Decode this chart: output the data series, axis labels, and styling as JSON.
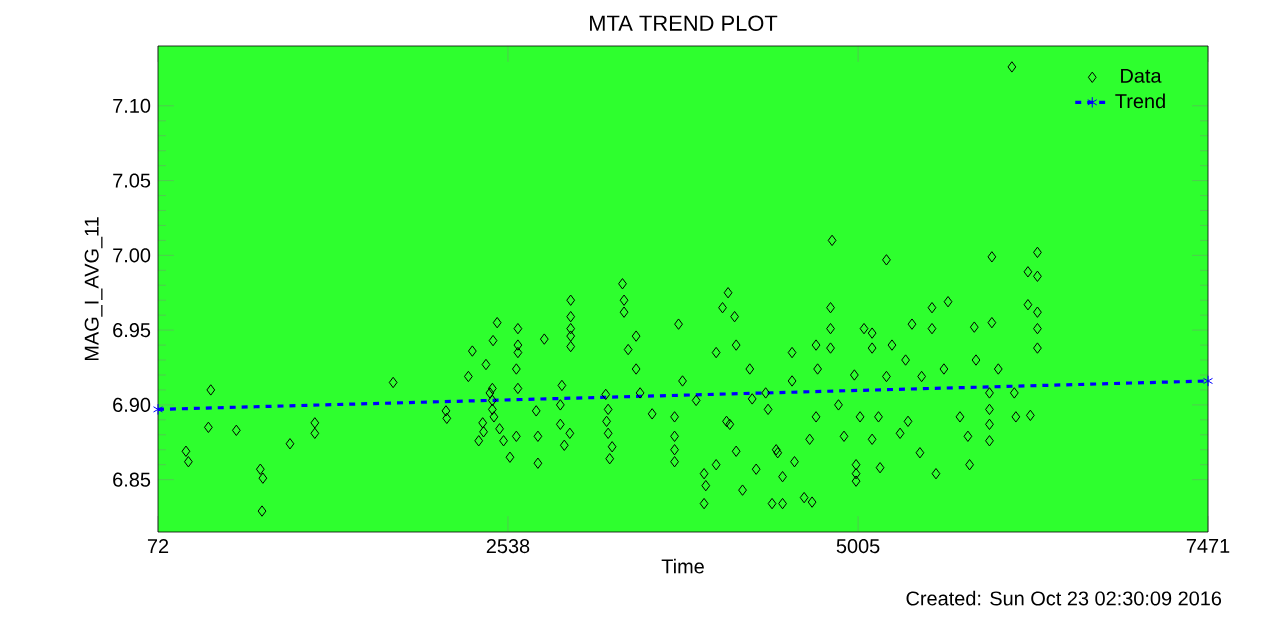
{
  "chart_data": {
    "type": "scatter",
    "title": "MTA TREND PLOT",
    "xlabel": "Time",
    "ylabel": "MAG_I_AVG_11",
    "annotations": [
      "Created: Sun Oct 23 02:30:09 2016"
    ],
    "xlim": [
      72,
      7471
    ],
    "xticks": [
      72,
      2538,
      5005,
      7471
    ],
    "ylim": [
      6.815,
      7.14
    ],
    "yticks": [
      6.85,
      {
        "value": 6.9,
        "label": "6.90"
      },
      6.95,
      {
        "value": 7.0,
        "label": "7.00"
      },
      7.05,
      {
        "value": 7.1,
        "label": "7.10"
      }
    ],
    "legend": "top right",
    "series": [
      {
        "name": "Data",
        "color": "#000000",
        "marker": "diamond",
        "x": [
          269,
          286,
          444,
          427,
          624,
          793,
          811,
          805,
          1002,
          1177,
          1177,
          1729,
          2101,
          2107,
          2287,
          2259,
          2332,
          2360,
          2366,
          2383,
          2411,
          2428,
          2428,
          2428,
          2433,
          2462,
          2439,
          2479,
          2507,
          2552,
          2608,
          2608,
          2608,
          2597,
          2608,
          2597,
          2749,
          2749,
          2737,
          2794,
          2918,
          2935,
          2974,
          2980,
          2980,
          2980,
          2980,
          2980,
          2907,
          2907,
          3227,
          3244,
          3233,
          3244,
          3255,
          3272,
          3345,
          3356,
          3356,
          3385,
          3441,
          3441,
          3469,
          3554,
          3712,
          3712,
          3712,
          3712,
          3740,
          3768,
          3864,
          3920,
          3932,
          3920,
          4005,
          4005,
          4050,
          4089,
          4078,
          4101,
          4135,
          4146,
          4146,
          4191,
          4242,
          4259,
          4354,
          4371,
          4287,
          4399,
          4428,
          4439,
          4473,
          4473,
          4540,
          4540,
          4557,
          4625,
          4681,
          4664,
          4709,
          4720,
          4709,
          4811,
          4811,
          4811,
          4822,
          4867,
          4906,
          4979,
          4991,
          4991,
          4991,
          5019,
          5047,
          5104,
          5104,
          5104,
          5149,
          5160,
          5205,
          5205,
          5244,
          5301,
          5340,
          5385,
          5357,
          5441,
          5453,
          5526,
          5526,
          5554,
          5610,
          5639,
          5723,
          5779,
          5791,
          5824,
          5836,
          5931,
          5931,
          5931,
          5931,
          5948,
          5948,
          5993,
          6117,
          6106,
          6089,
          6202,
          6202,
          6219,
          6269,
          6269,
          6269,
          6269,
          6269
        ],
        "values": [
          6.869,
          6.862,
          6.91,
          6.885,
          6.883,
          6.857,
          6.851,
          6.829,
          6.874,
          6.888,
          6.881,
          6.915,
          6.896,
          6.891,
          6.936,
          6.919,
          6.876,
          6.888,
          6.882,
          6.927,
          6.908,
          6.911,
          6.903,
          6.897,
          6.943,
          6.955,
          6.892,
          6.884,
          6.876,
          6.865,
          6.951,
          6.94,
          6.935,
          6.924,
          6.911,
          6.879,
          6.861,
          6.879,
          6.896,
          6.944,
          6.913,
          6.873,
          6.881,
          6.97,
          6.959,
          6.951,
          6.939,
          6.946,
          6.9,
          6.887,
          6.907,
          6.897,
          6.889,
          6.881,
          6.864,
          6.872,
          6.981,
          6.97,
          6.962,
          6.937,
          6.946,
          6.924,
          6.908,
          6.894,
          6.892,
          6.879,
          6.87,
          6.862,
          6.954,
          6.916,
          6.903,
          6.834,
          6.846,
          6.854,
          6.86,
          6.935,
          6.965,
          6.975,
          6.889,
          6.887,
          6.959,
          6.94,
          6.869,
          6.843,
          6.924,
          6.904,
          6.908,
          6.897,
          6.857,
          6.834,
          6.87,
          6.868,
          6.852,
          6.834,
          6.916,
          6.935,
          6.862,
          6.838,
          6.835,
          6.877,
          6.892,
          6.924,
          6.94,
          6.965,
          6.951,
          6.938,
          7.01,
          6.9,
          6.879,
          6.92,
          6.849,
          6.86,
          6.854,
          6.892,
          6.951,
          6.948,
          6.938,
          6.877,
          6.892,
          6.858,
          6.997,
          6.919,
          6.94,
          6.881,
          6.93,
          6.954,
          6.889,
          6.868,
          6.919,
          6.965,
          6.951,
          6.854,
          6.924,
          6.969,
          6.892,
          6.879,
          6.86,
          6.952,
          6.93,
          6.908,
          6.897,
          6.887,
          6.876,
          6.999,
          6.955,
          6.924,
          6.892,
          6.908,
          7.126,
          6.989,
          6.967,
          6.893,
          7.002,
          6.986,
          6.951,
          6.938,
          6.962
        ]
      },
      {
        "name": "Trend",
        "type": "line",
        "color": "#0000ff",
        "marker": "cross",
        "line_style": "dashed",
        "x": [
          72,
          7471
        ],
        "values": [
          6.897,
          6.916
        ]
      }
    ]
  }
}
